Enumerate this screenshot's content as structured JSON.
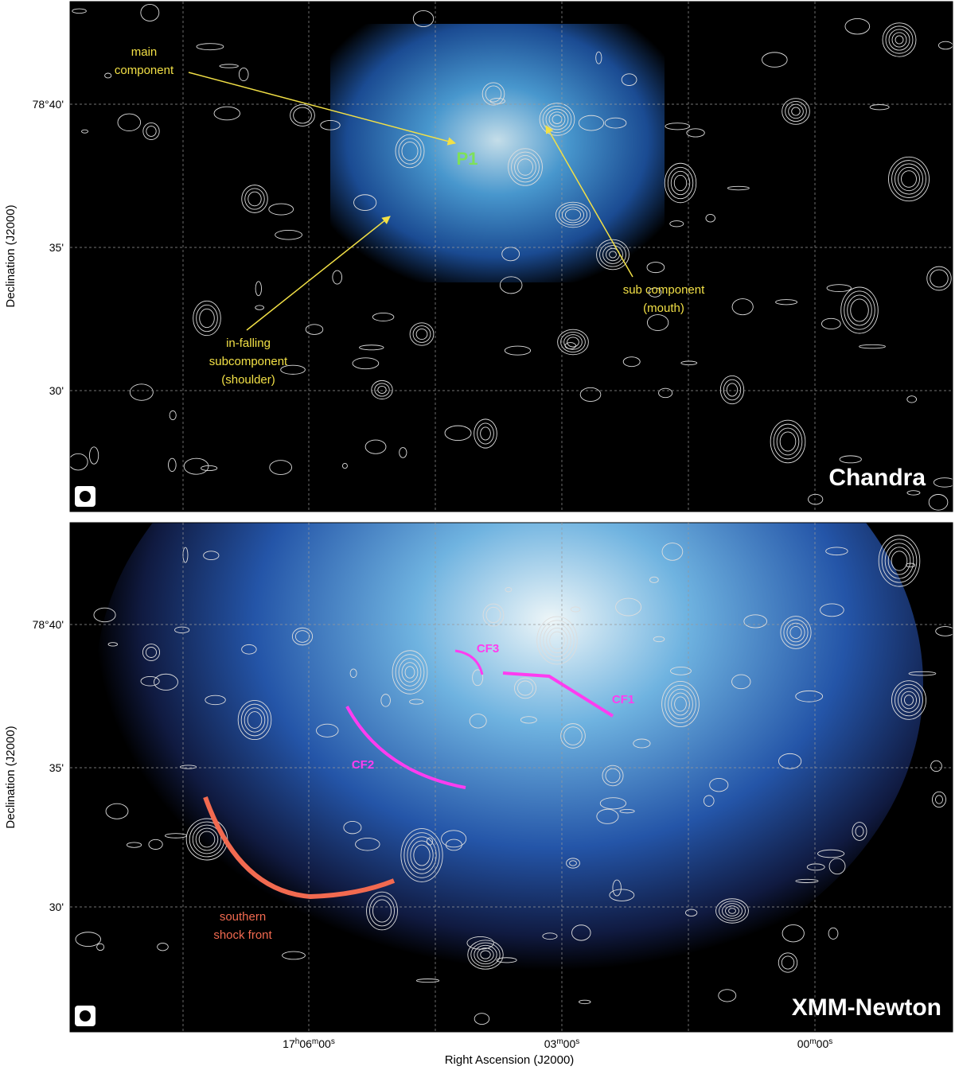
{
  "axes": {
    "x_label": "Right Ascension (J2000)",
    "y_label": "Declination (J2000)",
    "x_ticks": [
      [
        "17",
        "h",
        "06",
        "m",
        "00",
        "s"
      ],
      [
        "03",
        "m",
        "00",
        "s"
      ],
      [
        "00",
        "m",
        "00",
        "s"
      ]
    ],
    "y_ticks": [
      "78°40'",
      "35'",
      "30'"
    ]
  },
  "panels": [
    {
      "instrument": "Chandra",
      "annotations": {
        "main": [
          "main",
          "component"
        ],
        "p1": "P1",
        "shoulder": [
          "in-falling",
          "subcomponent",
          "(shoulder)"
        ],
        "mouth": [
          "sub component",
          "(mouth)"
        ]
      }
    },
    {
      "instrument": "XMM-Newton",
      "annotations": {
        "cf3": "CF3",
        "cf1": "CF1",
        "cf2": "CF2",
        "shock": [
          "southern",
          "shock front"
        ]
      }
    }
  ]
}
